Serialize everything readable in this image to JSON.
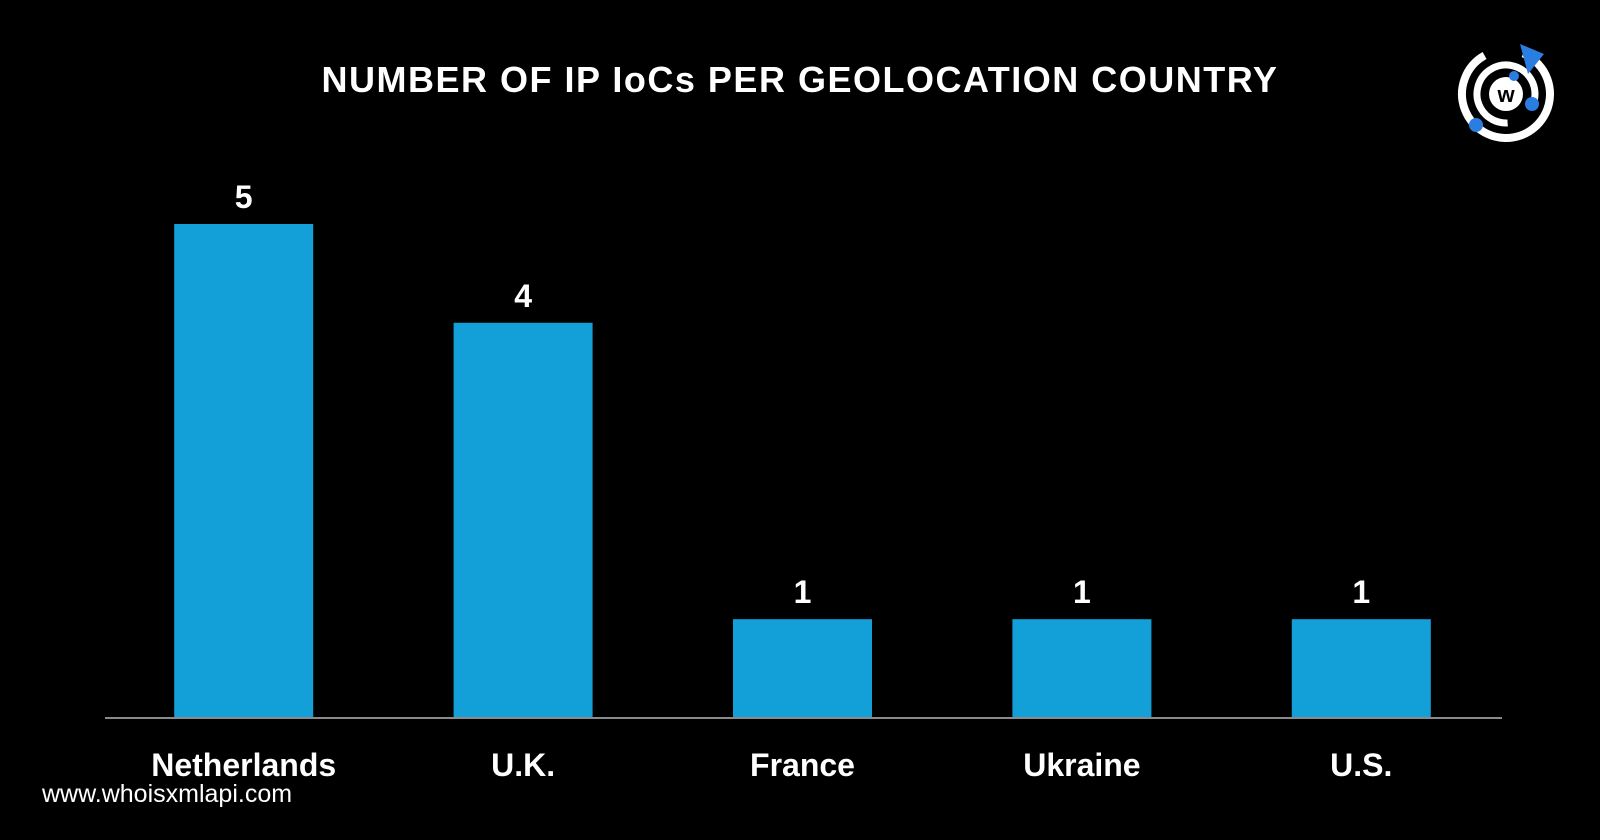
{
  "chart_data": {
    "type": "bar",
    "title": "NUMBER OF IP IoCs PER GEOLOCATION COUNTRY",
    "categories": [
      "Netherlands",
      "U.K.",
      "France",
      "Ukraine",
      "U.S."
    ],
    "values": [
      5,
      4,
      1,
      1,
      1
    ],
    "xlabel": "",
    "ylabel": "",
    "ylim": [
      0,
      5
    ],
    "grid": false,
    "bar_color": "#139fd8",
    "axis_color": "#8a8a8a",
    "background": "#000000"
  },
  "footer": {
    "url": "www.whoisxmlapi.com"
  },
  "logo": {
    "icon": "whoisxmlapi-logo-icon",
    "letter": "w",
    "accent": "#2a7de1"
  }
}
